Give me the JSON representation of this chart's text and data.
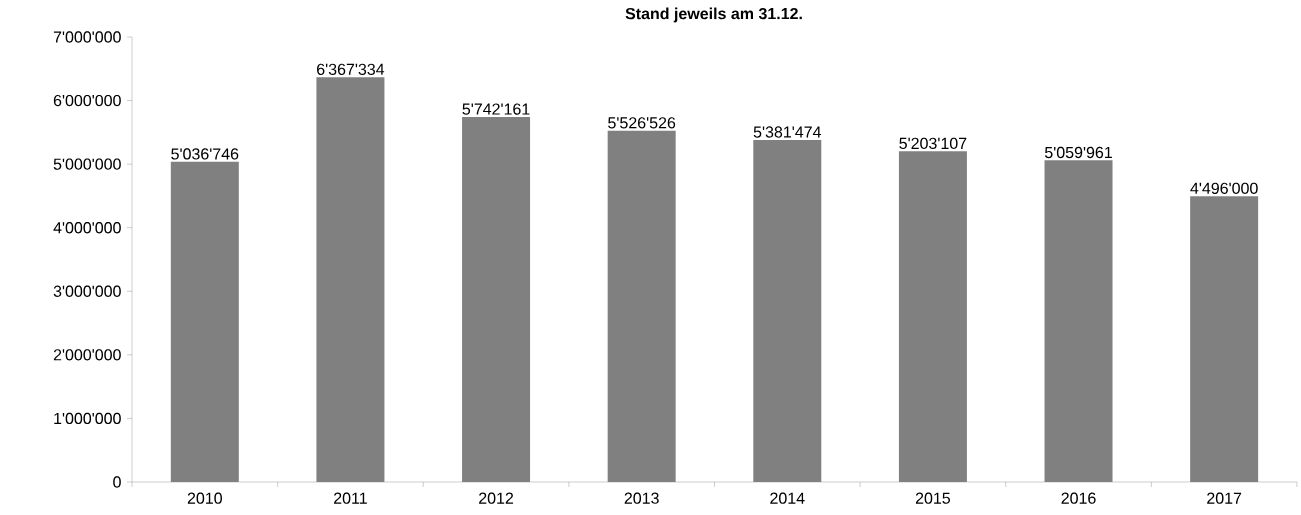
{
  "chart_data": {
    "type": "bar",
    "title": "Stand jeweils am 31.12.",
    "categories": [
      "2010",
      "2011",
      "2012",
      "2013",
      "2014",
      "2015",
      "2016",
      "2017"
    ],
    "values": [
      5036746,
      6367334,
      5742161,
      5526526,
      5381474,
      5203107,
      5059961,
      4496000
    ],
    "value_labels": [
      "5'036'746",
      "6'367'334",
      "5'742'161",
      "5'526'526",
      "5'381'474",
      "5'203'107",
      "5'059'961",
      "4'496'000"
    ],
    "color": "#808080",
    "ylim": [
      0,
      7000000
    ],
    "yticks": [
      0,
      {
        "value": 1000000,
        "label": "1'000'000"
      },
      {
        "value": 2000000,
        "label": "2'000'000"
      },
      {
        "value": 3000000,
        "label": "3'000'000"
      },
      {
        "value": 4000000,
        "label": "4'000'000"
      },
      {
        "value": 5000000,
        "label": "5'000'000"
      },
      {
        "value": 6000000,
        "label": "6'000'000"
      },
      {
        "value": 7000000,
        "label": "7'000'000"
      }
    ],
    "grid": false
  }
}
